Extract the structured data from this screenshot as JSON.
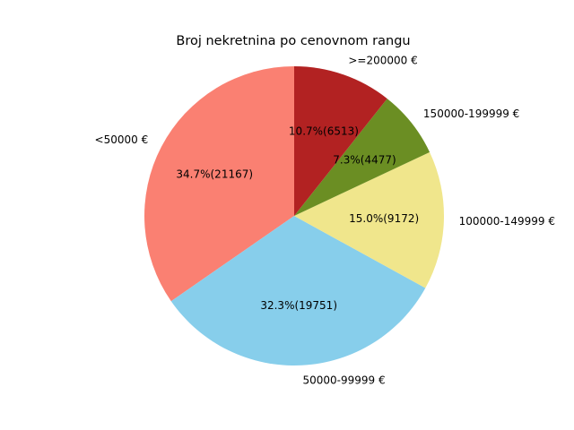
{
  "chart_data": {
    "type": "pie",
    "title": "Broj nekretnina po cenovnom rangu",
    "slices": [
      {
        "label": "<50000 €",
        "value": 21167,
        "percent_label": "34.7%(21167)",
        "color": "#fa8072"
      },
      {
        "label": "50000-99999 €",
        "value": 19751,
        "percent_label": "32.3%(19751)",
        "color": "#87ceeb"
      },
      {
        "label": "100000-149999 €",
        "value": 9172,
        "percent_label": "15.0%(9172)",
        "color": "#f0e68c"
      },
      {
        "label": "150000-199999 €",
        "value": 4477,
        "percent_label": "7.3%(4477)",
        "color": "#6b8e23"
      },
      {
        "label": ">=200000 €",
        "value": 6513,
        "percent_label": "10.7%(6513)",
        "color": "#b22222"
      }
    ],
    "start_angle": 90,
    "direction": "counterclockwise"
  }
}
